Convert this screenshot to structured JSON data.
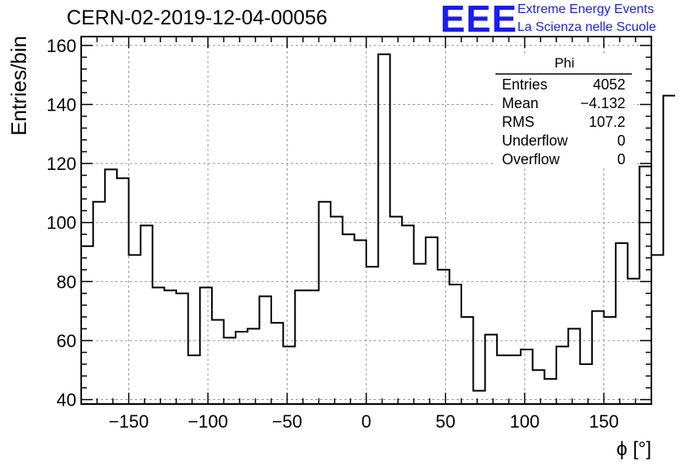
{
  "header": {
    "title": "CERN-02-2019-12-04-00056",
    "logo_text": "EEE",
    "org_line1": "Extreme Energy Events",
    "org_line2": "La Scienza nelle Scuole"
  },
  "stats_box": {
    "name": "Phi",
    "rows": [
      {
        "label": "Entries",
        "value": "4052"
      },
      {
        "label": "Mean",
        "value": "−4.132"
      },
      {
        "label": "RMS",
        "value": "107.2"
      },
      {
        "label": "Underflow",
        "value": "0"
      },
      {
        "label": "Overflow",
        "value": "0"
      }
    ]
  },
  "colors": {
    "line": "#000000",
    "grid": "#999999",
    "logo": "#1a1aff"
  },
  "chart_data": {
    "type": "histogram",
    "title": "CERN-02-2019-12-04-00056",
    "xlabel": "ϕ [°]",
    "ylabel": "Entries/bin",
    "xlim": [
      -180,
      180
    ],
    "ylim": [
      38.5,
      163
    ],
    "grid": true,
    "bin_width": 7.5,
    "bin_edges_start": -180,
    "values": [
      92,
      107,
      118,
      115,
      89,
      99,
      78,
      77,
      76,
      55,
      78,
      67,
      61,
      63,
      64,
      75,
      66,
      58,
      77,
      77,
      107,
      102,
      96,
      94,
      85,
      157,
      102,
      99,
      86,
      95,
      84,
      79,
      68,
      43,
      62,
      55,
      55,
      57,
      50,
      47,
      58,
      64,
      52,
      70,
      68,
      93,
      81,
      119,
      89,
      143
    ],
    "x_ticks": [
      -150,
      -100,
      -50,
      0,
      50,
      100,
      150
    ],
    "x_tick_labels": [
      "−150",
      "−100",
      "−50",
      "0",
      "50",
      "100",
      "150"
    ],
    "y_ticks": [
      40,
      60,
      80,
      100,
      120,
      140,
      160
    ],
    "y_tick_labels": [
      "40",
      "60",
      "80",
      "100",
      "120",
      "140",
      "160"
    ]
  }
}
